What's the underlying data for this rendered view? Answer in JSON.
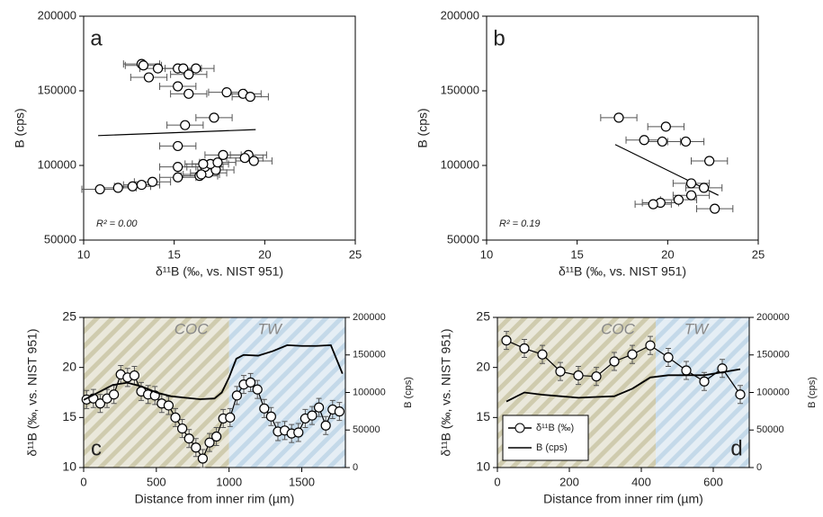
{
  "chart_data": [
    {
      "type": "scatter",
      "label": "a",
      "xlabel": "δ¹¹B (‰, vs. NIST 951)",
      "ylabel": "B (cps)",
      "xlim": [
        10,
        25
      ],
      "ylim": [
        50000,
        200000
      ],
      "xticks": [
        10,
        15,
        20,
        25
      ],
      "yticks": [
        50000,
        100000,
        150000,
        200000
      ],
      "color": "#000000",
      "xerr": 1,
      "x": [
        13.2,
        13.3,
        14.1,
        15.2,
        15.5,
        16.2,
        13.6,
        15.8,
        15.2,
        15.8,
        17.9,
        18.8,
        19.2,
        17.2,
        15.6,
        15.2,
        10.9,
        11.9,
        12.7,
        13.2,
        13.8,
        15.2,
        16.4,
        16.9,
        17.3,
        16.7,
        15.2,
        17.0,
        17.4,
        16.6,
        17.7,
        19.1,
        18.9,
        19.4,
        16.5
      ],
      "values": [
        168000,
        167000,
        165000,
        165000,
        165000,
        165000,
        159000,
        161000,
        153000,
        148000,
        149000,
        148000,
        146000,
        132000,
        127000,
        113000,
        84000,
        85000,
        86000,
        87000,
        89000,
        92000,
        93000,
        95000,
        97000,
        99000,
        99000,
        101000,
        102000,
        101000,
        107000,
        107000,
        105000,
        103000,
        94000
      ],
      "fit": {
        "x": [
          10.8,
          19.5
        ],
        "values": [
          120000,
          124000
        ]
      },
      "annotation": "R² = 0.00"
    },
    {
      "type": "scatter",
      "label": "b",
      "xlabel": "δ¹¹B (‰, vs. NIST 951)",
      "ylabel": "B (cps)",
      "xlim": [
        10,
        25
      ],
      "ylim": [
        50000,
        200000
      ],
      "xticks": [
        10,
        15,
        20,
        25
      ],
      "yticks": [
        50000,
        100000,
        150000,
        200000
      ],
      "color": "#000000",
      "xerr": 1,
      "x": [
        17.3,
        19.9,
        18.7,
        19.7,
        21.0,
        22.3,
        21.3,
        22.0,
        21.3,
        20.6,
        19.6,
        19.2,
        22.6
      ],
      "values": [
        132000,
        126000,
        117000,
        116000,
        116000,
        103000,
        88000,
        85000,
        80000,
        77000,
        75000,
        74000,
        71000
      ],
      "fit": {
        "x": [
          17.1,
          22.8
        ],
        "values": [
          114000,
          80000
        ]
      },
      "annotation": "R² = 0.19"
    },
    {
      "type": "line",
      "label": "c",
      "xlabel": "Distance from inner rim (µm)",
      "ylabel": "δ¹¹B (‰, vs. NIST 951)",
      "y2label": "B (cps)",
      "xlim": [
        0,
        1800
      ],
      "ylim": [
        10,
        25
      ],
      "y2lim": [
        0,
        200000
      ],
      "xticks": [
        0,
        500,
        1000,
        1500
      ],
      "yticks": [
        10,
        15,
        20,
        25
      ],
      "y2ticks": [
        0,
        50000,
        100000,
        150000,
        200000
      ],
      "regions": [
        {
          "label": "COC",
          "range": [
            0,
            1000
          ],
          "color": "#b9b48a"
        },
        {
          "label": "TW",
          "range": [
            1000,
            1800
          ],
          "color": "#a9c8e0"
        }
      ],
      "series": [
        {
          "color": "#000000",
          "marker": "circle",
          "error": 0.9,
          "x": [
            20,
            67,
            114,
            161,
            208,
            255,
            302,
            349,
            396,
            443,
            490,
            537,
            584,
            631,
            678,
            725,
            772,
            819,
            866,
            913,
            960,
            1007,
            1054,
            1101,
            1148,
            1195,
            1242,
            1289,
            1336,
            1383,
            1430,
            1477,
            1524,
            1571,
            1618,
            1665,
            1712,
            1759
          ],
          "values": [
            16.8,
            16.9,
            16.4,
            16.9,
            17.3,
            19.3,
            19.0,
            19.2,
            17.6,
            17.3,
            17.2,
            16.4,
            16.2,
            15.0,
            13.9,
            12.9,
            12.0,
            10.9,
            12.5,
            13.1,
            14.9,
            15.0,
            17.2,
            18.3,
            18.5,
            17.8,
            15.9,
            15.1,
            13.6,
            13.7,
            13.4,
            13.5,
            14.9,
            15.2,
            16.0,
            14.2,
            15.8,
            15.6
          ]
        },
        {
          "color": "#000000",
          "axis": "y2",
          "x": [
            0,
            100,
            200,
            300,
            400,
            500,
            600,
            700,
            800,
            900,
            950,
            1000,
            1050,
            1100,
            1200,
            1300,
            1400,
            1500,
            1600,
            1700,
            1780
          ],
          "values": [
            90000,
            100000,
            110000,
            113000,
            108000,
            100000,
            95000,
            93000,
            91000,
            92000,
            100000,
            120000,
            145000,
            150000,
            149000,
            155000,
            163000,
            162000,
            162000,
            163000,
            125000
          ]
        }
      ]
    },
    {
      "type": "line",
      "label": "d",
      "xlabel": "Distance from inner rim (µm)",
      "ylabel": "δ¹¹B (‰, vs. NIST 951)",
      "y2label": "B (cps)",
      "xlim": [
        0,
        700
      ],
      "ylim": [
        10,
        25
      ],
      "y2lim": [
        0,
        200000
      ],
      "xticks": [
        0,
        200,
        400,
        600
      ],
      "yticks": [
        10,
        15,
        20,
        25
      ],
      "y2ticks": [
        0,
        50000,
        100000,
        150000,
        200000
      ],
      "legend": "lower left",
      "regions": [
        {
          "label": "COC",
          "range": [
            0,
            440
          ],
          "color": "#b9b48a"
        },
        {
          "label": "TW",
          "range": [
            440,
            700
          ],
          "color": "#a9c8e0"
        }
      ],
      "series": [
        {
          "name": "δ¹¹B (‰)",
          "color": "#000000",
          "marker": "circle",
          "error": 0.9,
          "x": [
            25,
            75,
            125,
            175,
            225,
            275,
            325,
            375,
            425,
            475,
            525,
            575,
            625,
            675
          ],
          "values": [
            22.7,
            21.9,
            21.3,
            19.6,
            19.2,
            19.1,
            20.6,
            21.3,
            22.2,
            21.0,
            19.7,
            18.6,
            19.9,
            17.3
          ]
        },
        {
          "name": "B (cps)",
          "color": "#000000",
          "axis": "y2",
          "x": [
            25,
            75,
            125,
            175,
            225,
            275,
            325,
            375,
            425,
            475,
            525,
            575,
            625,
            675
          ],
          "values": [
            88000,
            100000,
            97000,
            95000,
            93000,
            94000,
            95000,
            105000,
            120000,
            123000,
            123000,
            123000,
            127000,
            131000
          ]
        }
      ]
    }
  ]
}
